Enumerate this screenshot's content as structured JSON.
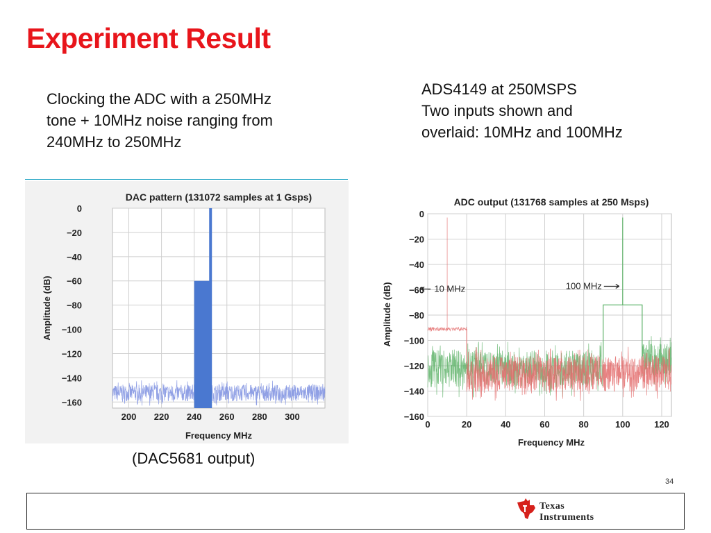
{
  "title": "Experiment Result",
  "left_text": [
    "Clocking the ADC with a 250MHz",
    "tone + 10MHz noise ranging from",
    "240MHz to 250MHz"
  ],
  "right_text": [
    "ADS4149 at 250MSPS",
    "Two inputs shown and",
    "overlaid: 10MHz and 100MHz"
  ],
  "caption": "(DAC5681 output)",
  "page_number": "34",
  "logo": {
    "line1": "Texas",
    "line2": "Instruments"
  },
  "colors": {
    "title": "#e8151b",
    "divider": "#2aa8c6",
    "dac_fill": "#4a78d0",
    "noise_blue": "#7c8fe0",
    "adc_green": "#5fb36a",
    "adc_red": "#e36b6b",
    "logo_red": "#d6201b"
  },
  "chart_data": [
    {
      "type": "bar",
      "title": "DAC pattern (131072 samples at 1 Gsps)",
      "xlabel": "Frequency MHz",
      "ylabel": "Amplitude (dB)",
      "xlim": [
        190,
        320
      ],
      "ylim": [
        -165,
        0
      ],
      "xticks": [
        200,
        220,
        240,
        260,
        280,
        300
      ],
      "yticks": [
        0,
        -20,
        -40,
        -60,
        -80,
        -100,
        -120,
        -140,
        -160
      ],
      "grid": true,
      "series": [
        {
          "kind": "noise-floor",
          "x_range": [
            190,
            320
          ],
          "value_range": [
            -163,
            -142
          ]
        },
        {
          "kind": "band",
          "x_range": [
            240,
            250
          ],
          "value": -60
        },
        {
          "kind": "tone",
          "x": 250,
          "value": 0
        }
      ]
    },
    {
      "type": "line",
      "title": "ADC output (131768 samples at 250 Msps)",
      "xlabel": "Frequency MHz",
      "ylabel": "Amplitude (dB)",
      "xlim": [
        0,
        125
      ],
      "ylim": [
        -160,
        0
      ],
      "xticks": [
        0,
        20,
        40,
        60,
        80,
        100,
        120
      ],
      "yticks": [
        0,
        -20,
        -40,
        -60,
        -80,
        -100,
        -120,
        -140,
        -160
      ],
      "grid": true,
      "annotations": [
        {
          "text": "10 MHz",
          "x": 20,
          "y": -60,
          "arrow": "left"
        },
        {
          "text": "100 MHz",
          "x": 100,
          "y": -60,
          "arrow": "right"
        }
      ],
      "series": [
        {
          "kind": "green-trace",
          "noise_band": {
            "x_range": [
              0,
              125
            ],
            "value_range": [
              -145,
              -100
            ]
          },
          "plateau": {
            "x_range": [
              90,
              110
            ],
            "value": -72
          },
          "tone": {
            "x": 100,
            "value": -3
          }
        },
        {
          "kind": "red-trace",
          "noise_band": {
            "x_range": [
              20,
              125
            ],
            "value_range": [
              -148,
              -105
            ]
          },
          "plateau": {
            "x_range": [
              0,
              20
            ],
            "value": -91
          },
          "tone": {
            "x": 10,
            "value": -3
          }
        }
      ]
    }
  ]
}
